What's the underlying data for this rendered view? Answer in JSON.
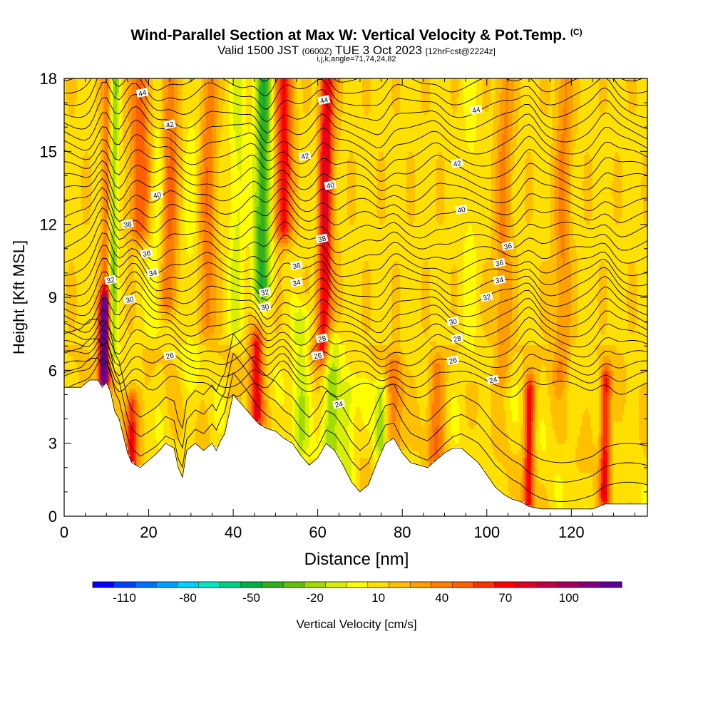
{
  "title": {
    "main": "Wind-Parallel Section at Max W: Vertical Velocity & Pot.Temp.",
    "corner_mark": "(C)",
    "valid_prefix": "Valid 1500 JST",
    "valid_utc": "(0600Z)",
    "valid_date": "TUE 3 Oct 2023",
    "forecast": "[12hrFcst@2224z]",
    "indices": "i,j,k,angle=71,74,24,82"
  },
  "chart_data": {
    "type": "heatmap",
    "xlabel": "Distance [nm]",
    "ylabel": "Height [Kft MSL]",
    "xlim": [
      0,
      138
    ],
    "ylim": [
      0,
      18
    ],
    "x_ticks": [
      0,
      20,
      40,
      60,
      80,
      100,
      120
    ],
    "y_ticks": [
      0,
      3,
      6,
      9,
      12,
      15,
      18
    ],
    "colorbar": {
      "label": "Vertical Velocity [cm/s]",
      "min": -125,
      "max": 125,
      "tick_values": [
        -110,
        -80,
        -50,
        -20,
        10,
        40,
        70,
        100
      ],
      "tick_labels": [
        "-110",
        "-80",
        "-50",
        "-20",
        "10",
        "40",
        "70",
        "100"
      ],
      "colors": [
        "#0000ff",
        "#0040ff",
        "#0070ff",
        "#00a0ff",
        "#00d0ff",
        "#00e8c0",
        "#00d080",
        "#00b040",
        "#30b020",
        "#60c010",
        "#a0dc00",
        "#d8f000",
        "#ffff00",
        "#ffe000",
        "#ffc000",
        "#ffa000",
        "#ff8000",
        "#ff6000",
        "#ff3000",
        "#ff0000",
        "#e00020",
        "#c00040",
        "#a00060",
        "#800080",
        "#600090"
      ]
    },
    "terrain_kft": [
      [
        0,
        5.3
      ],
      [
        4,
        5.3
      ],
      [
        6,
        5.6
      ],
      [
        8,
        5.6
      ],
      [
        9,
        5.3
      ],
      [
        10,
        5.5
      ],
      [
        11,
        5.1
      ],
      [
        12,
        4.3
      ],
      [
        13,
        4.0
      ],
      [
        14,
        3.3
      ],
      [
        15,
        2.6
      ],
      [
        16,
        2.2
      ],
      [
        18,
        2.0
      ],
      [
        20,
        2.3
      ],
      [
        22,
        2.6
      ],
      [
        24,
        3.0
      ],
      [
        26,
        2.8
      ],
      [
        27,
        2.0
      ],
      [
        28,
        1.6
      ],
      [
        29,
        2.7
      ],
      [
        31,
        3.0
      ],
      [
        33,
        2.7
      ],
      [
        35,
        3.0
      ],
      [
        36,
        2.7
      ],
      [
        37,
        3.1
      ],
      [
        38,
        3.4
      ],
      [
        39,
        4.2
      ],
      [
        40,
        5.0
      ],
      [
        42,
        4.6
      ],
      [
        44,
        4.2
      ],
      [
        46,
        3.8
      ],
      [
        48,
        3.6
      ],
      [
        50,
        3.5
      ],
      [
        52,
        3.2
      ],
      [
        54,
        3.0
      ],
      [
        56,
        2.5
      ],
      [
        58,
        2.1
      ],
      [
        60,
        2.4
      ],
      [
        62,
        3.0
      ],
      [
        64,
        2.7
      ],
      [
        66,
        2.1
      ],
      [
        68,
        1.4
      ],
      [
        70,
        1.0
      ],
      [
        72,
        1.3
      ],
      [
        74,
        2.2
      ],
      [
        76,
        3.0
      ],
      [
        78,
        3.2
      ],
      [
        80,
        2.6
      ],
      [
        82,
        2.2
      ],
      [
        84,
        2.1
      ],
      [
        86,
        2.0
      ],
      [
        88,
        2.3
      ],
      [
        90,
        2.6
      ],
      [
        92,
        2.8
      ],
      [
        94,
        2.8
      ],
      [
        96,
        2.5
      ],
      [
        98,
        2.2
      ],
      [
        100,
        1.7
      ],
      [
        102,
        1.2
      ],
      [
        104,
        0.9
      ],
      [
        106,
        0.7
      ],
      [
        108,
        0.6
      ],
      [
        110,
        0.4
      ],
      [
        113,
        0.3
      ],
      [
        118,
        0.3
      ],
      [
        125,
        0.3
      ],
      [
        128,
        0.5
      ],
      [
        133,
        0.5
      ],
      [
        138,
        0.5
      ]
    ],
    "w_features": [
      {
        "x": 9.5,
        "y0": 6.0,
        "y1": 8.5,
        "w": 110,
        "width": 1.2
      },
      {
        "x": 10.0,
        "y0": 3.0,
        "y1": 18.0,
        "w": 40,
        "width": 1.2
      },
      {
        "x": 11.5,
        "y0": 7.0,
        "y1": 18.0,
        "w": -45,
        "width": 1.2
      },
      {
        "x": 16.0,
        "y0": 2.0,
        "y1": 4.5,
        "w": 60,
        "width": 1.5
      },
      {
        "x": 18.0,
        "y0": 12.0,
        "y1": 18.0,
        "w": 40,
        "width": 2.5
      },
      {
        "x": 22.0,
        "y0": 8.0,
        "y1": 18.0,
        "w": -15,
        "width": 2.0
      },
      {
        "x": 25.0,
        "y0": 9.0,
        "y1": 18.0,
        "w": 35,
        "width": 2.0
      },
      {
        "x": 30.0,
        "y0": 6.0,
        "y1": 18.0,
        "w": -10,
        "width": 2.0
      },
      {
        "x": 34.0,
        "y0": 8.0,
        "y1": 18.0,
        "w": 30,
        "width": 2.0
      },
      {
        "x": 41.0,
        "y0": 8.0,
        "y1": 18.0,
        "w": -20,
        "width": 2.0
      },
      {
        "x": 45.5,
        "y0": 4.0,
        "y1": 7.0,
        "w": 60,
        "width": 1.5
      },
      {
        "x": 47.0,
        "y0": 9.5,
        "y1": 18.0,
        "w": -55,
        "width": 2.0
      },
      {
        "x": 52.0,
        "y0": 12.0,
        "y1": 18.0,
        "w": 60,
        "width": 2.0
      },
      {
        "x": 56.0,
        "y0": 3.0,
        "y1": 8.0,
        "w": -25,
        "width": 2.0
      },
      {
        "x": 61.5,
        "y0": 7.0,
        "y1": 18.0,
        "w": 75,
        "width": 2.0
      },
      {
        "x": 63.0,
        "y0": 2.5,
        "y1": 7.0,
        "w": -35,
        "width": 2.0
      },
      {
        "x": 67.0,
        "y0": 2.0,
        "y1": 5.0,
        "w": -25,
        "width": 2.0
      },
      {
        "x": 75.0,
        "y0": 3.0,
        "y1": 5.0,
        "w": -35,
        "width": 1.5
      },
      {
        "x": 78.0,
        "y0": 3.0,
        "y1": 6.0,
        "w": 30,
        "width": 2.0
      },
      {
        "x": 88.0,
        "y0": 2.5,
        "y1": 6.0,
        "w": 30,
        "width": 2.0
      },
      {
        "x": 110.0,
        "y0": 0.5,
        "y1": 5.0,
        "w": 60,
        "width": 1.2
      },
      {
        "x": 128.0,
        "y0": 1.0,
        "y1": 5.5,
        "w": 60,
        "width": 1.2
      },
      {
        "x": 60.0,
        "y0": 8.0,
        "y1": 18.0,
        "w": -25,
        "width": 1.5
      },
      {
        "x": 104.0,
        "y0": 6.0,
        "y1": 18.0,
        "w": 25,
        "width": 2.0
      },
      {
        "x": 118.0,
        "y0": 6.0,
        "y1": 18.0,
        "w": 25,
        "width": 2.0
      },
      {
        "x": 96.0,
        "y0": 6.0,
        "y1": 18.0,
        "w": -10,
        "width": 2.0
      }
    ],
    "theta_labels": [
      {
        "text": "44",
        "x": 18.5,
        "y": 17.4
      },
      {
        "text": "44",
        "x": 61.5,
        "y": 17.1
      },
      {
        "text": "44",
        "x": 97.5,
        "y": 16.7
      },
      {
        "text": "42",
        "x": 25.0,
        "y": 16.1
      },
      {
        "text": "42",
        "x": 57.0,
        "y": 14.8
      },
      {
        "text": "42",
        "x": 93.0,
        "y": 14.5
      },
      {
        "text": "40",
        "x": 22.0,
        "y": 13.2
      },
      {
        "text": "40",
        "x": 63.0,
        "y": 13.6
      },
      {
        "text": "40",
        "x": 94.0,
        "y": 12.6
      },
      {
        "text": "38",
        "x": 15.0,
        "y": 12.0
      },
      {
        "text": "38",
        "x": 61.0,
        "y": 11.4
      },
      {
        "text": "36",
        "x": 19.5,
        "y": 10.8
      },
      {
        "text": "36",
        "x": 55.0,
        "y": 10.3
      },
      {
        "text": "36",
        "x": 105.0,
        "y": 11.1
      },
      {
        "text": "36",
        "x": 103.0,
        "y": 10.4
      },
      {
        "text": "34",
        "x": 21.0,
        "y": 10.0
      },
      {
        "text": "34",
        "x": 55.0,
        "y": 9.6
      },
      {
        "text": "34",
        "x": 103.0,
        "y": 9.7
      },
      {
        "text": "32",
        "x": 11.0,
        "y": 9.7
      },
      {
        "text": "32",
        "x": 47.5,
        "y": 9.2
      },
      {
        "text": "32",
        "x": 100.0,
        "y": 9.0
      },
      {
        "text": "30",
        "x": 15.5,
        "y": 8.9
      },
      {
        "text": "30",
        "x": 47.5,
        "y": 8.6
      },
      {
        "text": "30",
        "x": 92.0,
        "y": 8.0
      },
      {
        "text": "28",
        "x": 61.0,
        "y": 7.3
      },
      {
        "text": "28",
        "x": 93.0,
        "y": 7.3
      },
      {
        "text": "26",
        "x": 60.0,
        "y": 6.6
      },
      {
        "text": "26",
        "x": 92.0,
        "y": 6.4
      },
      {
        "text": "26",
        "x": 25.0,
        "y": 6.6
      },
      {
        "text": "24",
        "x": 65.0,
        "y": 4.6
      },
      {
        "text": "24",
        "x": 101.5,
        "y": 5.6
      }
    ]
  }
}
